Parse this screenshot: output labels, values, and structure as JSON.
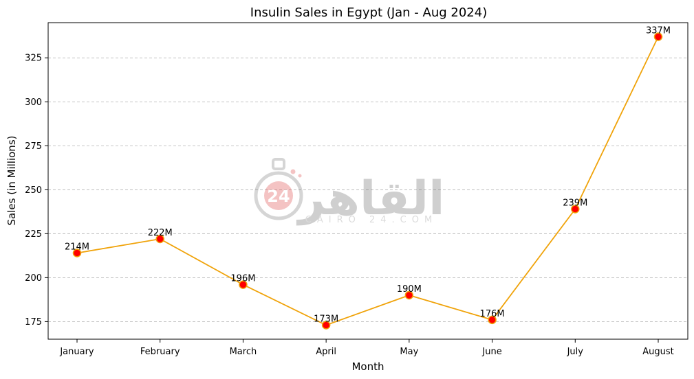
{
  "chart_data": {
    "type": "line",
    "title": "Insulin Sales in Egypt (Jan - Aug 2024)",
    "xlabel": "Month",
    "ylabel": "Sales (in Millions)",
    "categories": [
      "January",
      "February",
      "March",
      "April",
      "May",
      "June",
      "July",
      "August"
    ],
    "values": [
      214,
      222,
      196,
      173,
      190,
      176,
      239,
      337
    ],
    "data_labels": [
      "214M",
      "222M",
      "196M",
      "173M",
      "190M",
      "176M",
      "239M",
      "337M"
    ],
    "yticks": [
      175,
      200,
      225,
      250,
      275,
      300,
      325
    ],
    "ylim": [
      165,
      345
    ],
    "grid": "y-dashed",
    "line_color": "#f0a30a",
    "marker_color": "#ff0000",
    "marker_edge_color": "#f0a30a"
  },
  "watermark": {
    "arabic": "القاهر",
    "latin": "CAIRO 24.COM",
    "badge": "24"
  }
}
